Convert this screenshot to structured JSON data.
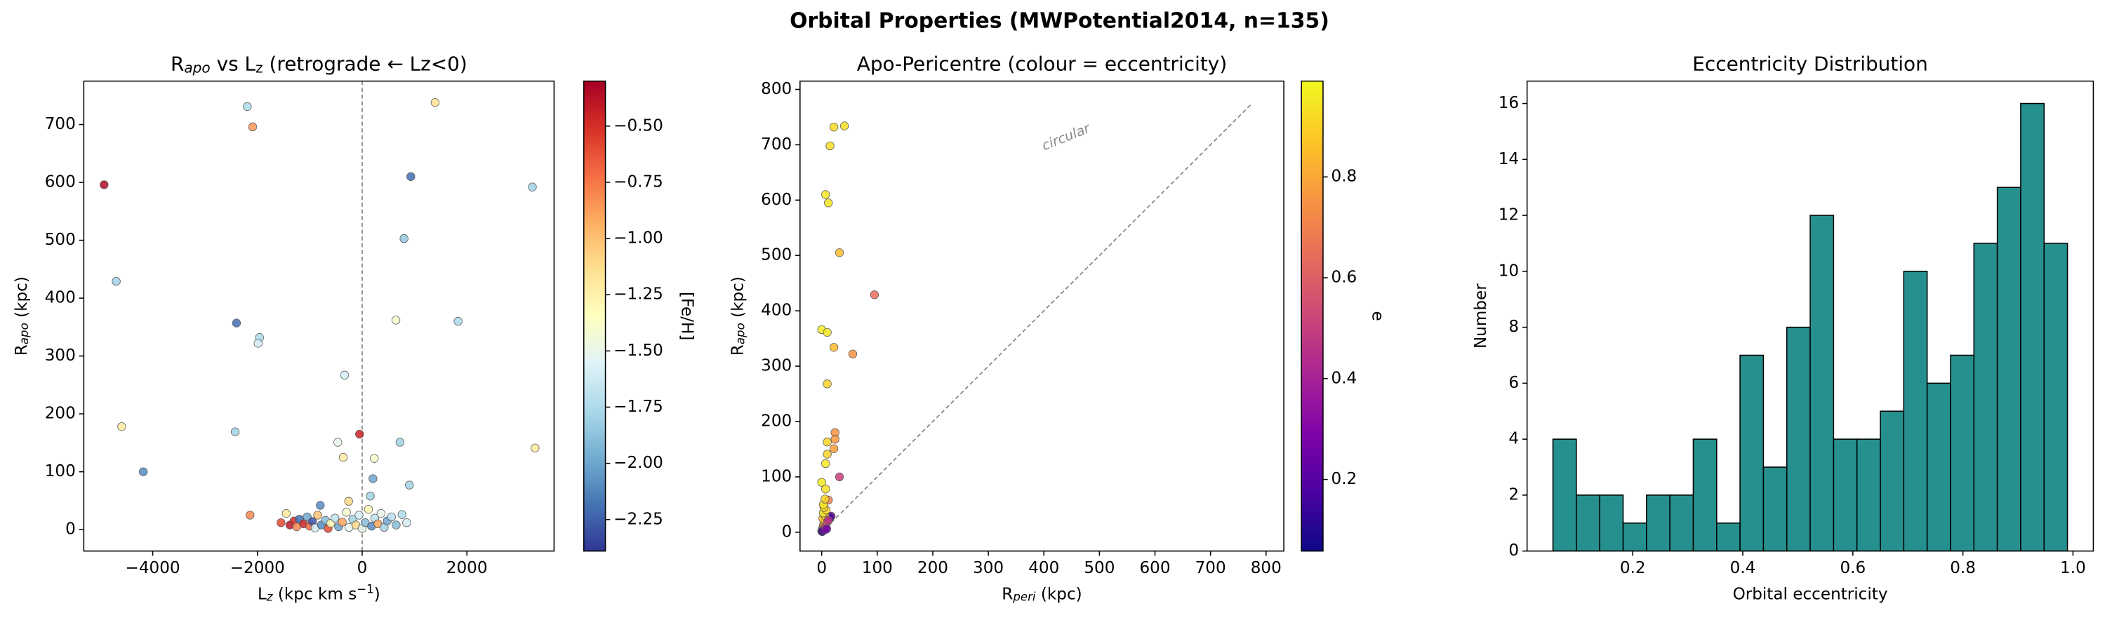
{
  "title": "Orbital Properties (MWPotential2014, n=135)",
  "chart_data": [
    {
      "type": "scatter",
      "title": [
        "R",
        "apo",
        " vs L",
        "z",
        "  (retrograde ← Lz<0)"
      ],
      "xlabel": [
        "L",
        "z",
        " (kpc km s",
        "−1",
        ")"
      ],
      "ylabel": [
        "R",
        "apo",
        " (kpc)"
      ],
      "x": [
        -4928,
        -2193,
        -2090,
        1393,
        929,
        3251,
        800,
        -4696,
        -2400,
        -1960,
        -1987,
        645,
        1832,
        -335,
        -4592,
        -2425,
        3302,
        -4180,
        -2141,
        -50,
        722,
        -464,
        -361,
        232,
        903,
        206,
        -258,
        -800,
        155,
        -1550,
        -1450,
        -1380,
        -1300,
        -1250,
        -1200,
        -1120,
        -1050,
        -1000,
        -950,
        -900,
        -850,
        -780,
        -700,
        -650,
        -600,
        -520,
        -450,
        -380,
        -300,
        -250,
        -180,
        -120,
        -60,
        0,
        60,
        120,
        180,
        240,
        300,
        360,
        420,
        480,
        560,
        650,
        760,
        850
      ],
      "y": [
        596,
        731,
        696,
        738,
        610,
        592,
        503,
        429,
        357,
        332,
        322,
        362,
        360,
        267,
        178,
        169,
        141,
        100,
        25,
        165,
        151,
        151,
        125,
        123,
        77,
        88,
        49,
        42,
        58,
        12,
        28,
        8,
        15,
        5,
        18,
        10,
        22,
        6,
        14,
        3,
        25,
        8,
        16,
        2,
        11,
        20,
        5,
        13,
        30,
        4,
        18,
        8,
        25,
        2,
        12,
        35,
        6,
        20,
        10,
        28,
        4,
        15,
        22,
        8,
        26,
        12
      ],
      "c": [
        -0.35,
        -1.75,
        -0.85,
        -1.15,
        -2.2,
        -1.8,
        -1.85,
        -1.8,
        -2.2,
        -1.75,
        -1.6,
        -1.4,
        -1.75,
        -1.6,
        -1.2,
        -1.8,
        -1.2,
        -2.1,
        -0.8,
        -0.45,
        -1.8,
        -1.5,
        -1.2,
        -1.4,
        -1.8,
        -2.0,
        -1.1,
        -2.1,
        -1.8,
        -0.6,
        -1.2,
        -0.4,
        -0.5,
        -0.8,
        -2.2,
        -0.45,
        -2.0,
        -0.7,
        -2.3,
        -1.6,
        -1.0,
        -2.1,
        -1.9,
        -0.6,
        -1.3,
        -1.7,
        -2.0,
        -0.9,
        -1.4,
        -1.5,
        -1.8,
        -1.1,
        -1.6,
        -1.5,
        -1.9,
        -1.3,
        -2.1,
        -1.7,
        -0.9,
        -1.5,
        -1.8,
        -2.0,
        -1.7,
        -1.9,
        -1.75,
        -1.6
      ],
      "cmap": "RdYlBu_r",
      "clim": [
        -2.39,
        -0.3
      ],
      "cticks": [
        {
          "value": -0.5,
          "label": "−0.50"
        },
        {
          "value": -0.75,
          "label": "−0.75"
        },
        {
          "value": -1.0,
          "label": "−1.00"
        },
        {
          "value": -1.25,
          "label": "−1.25"
        },
        {
          "value": -1.5,
          "label": "−1.50"
        },
        {
          "value": -1.75,
          "label": "−1.75"
        },
        {
          "value": -2.0,
          "label": "−2.00"
        },
        {
          "value": -2.25,
          "label": "−2.25"
        }
      ],
      "colorbar_label": "[Fe/H]",
      "vline": 0,
      "xlim": [
        -5316,
        3665
      ],
      "ylim": [
        -37,
        775
      ],
      "xticks": [
        {
          "value": -4000,
          "label": "−4000"
        },
        {
          "value": -2000,
          "label": "−2000"
        },
        0,
        2000
      ],
      "yticks": [
        0,
        100,
        200,
        300,
        400,
        500,
        600,
        700
      ]
    },
    {
      "type": "scatter",
      "title": [
        "Apo-Pericentre (colour = eccentricity)"
      ],
      "xlabel": [
        "R",
        "peri",
        " (kpc)"
      ],
      "ylabel": [
        "R",
        "apo",
        " (kpc)"
      ],
      "x": [
        41,
        22,
        15,
        7,
        12,
        32,
        95,
        0,
        10,
        22,
        56,
        10,
        24,
        24,
        10,
        22,
        10,
        7,
        32,
        0,
        7,
        12,
        17,
        15,
        0,
        1,
        2,
        3,
        4,
        5,
        2,
        6,
        3,
        8,
        4,
        1,
        2,
        5,
        7,
        10,
        12,
        9,
        3,
        6
      ],
      "y": [
        734,
        732,
        698,
        610,
        595,
        505,
        429,
        366,
        361,
        334,
        322,
        268,
        180,
        168,
        163,
        151,
        141,
        124,
        100,
        90,
        78,
        58,
        29,
        27,
        2,
        5,
        8,
        12,
        15,
        20,
        25,
        30,
        35,
        40,
        45,
        1,
        3,
        4,
        10,
        18,
        22,
        6,
        50,
        60
      ],
      "c": [
        0.93,
        0.92,
        0.93,
        0.95,
        0.94,
        0.85,
        0.65,
        0.96,
        0.95,
        0.85,
        0.75,
        0.9,
        0.75,
        0.76,
        0.9,
        0.78,
        0.9,
        0.95,
        0.5,
        0.96,
        0.93,
        0.7,
        0.3,
        0.15,
        0.2,
        0.4,
        0.6,
        0.8,
        0.7,
        0.9,
        0.85,
        0.9,
        0.95,
        0.9,
        0.92,
        0.1,
        0.15,
        0.3,
        0.5,
        0.6,
        0.45,
        0.25,
        0.94,
        0.9
      ],
      "cmap": "plasma",
      "clim": [
        0.058,
        0.99
      ],
      "cticks": [
        0.2,
        0.4,
        0.6,
        0.8
      ],
      "colorbar_label": "e",
      "ref_line": [
        0,
        775
      ],
      "annotation": "circular",
      "xlim": [
        -39,
        832
      ],
      "ylim": [
        -34,
        815
      ],
      "xticks": [
        0,
        100,
        200,
        300,
        400,
        500,
        600,
        700,
        800
      ],
      "yticks": [
        0,
        100,
        200,
        300,
        400,
        500,
        600,
        700,
        800
      ]
    },
    {
      "type": "histogram",
      "title": [
        "Eccentricity Distribution"
      ],
      "xlabel": [
        "Orbital eccentricity"
      ],
      "ylabel": [
        "Number"
      ],
      "bins": [
        0.055,
        0.0975,
        0.14,
        0.1825,
        0.225,
        0.2675,
        0.31,
        0.3525,
        0.395,
        0.4375,
        0.48,
        0.5225,
        0.565,
        0.6075,
        0.65,
        0.6925,
        0.735,
        0.7775,
        0.82,
        0.8625,
        0.905,
        0.9475,
        0.99
      ],
      "counts": [
        4,
        2,
        2,
        1,
        2,
        2,
        4,
        1,
        7,
        3,
        8,
        12,
        4,
        4,
        5,
        10,
        6,
        7,
        11,
        13,
        16,
        11
      ],
      "color": "#26908e",
      "edgecolor": "#000000",
      "xlim": [
        0.008,
        1.037
      ],
      "ylim": [
        0,
        16.8
      ],
      "xticks": [
        0.2,
        0.4,
        0.6,
        0.8,
        {
          "value": 1,
          "label": "1.0"
        }
      ],
      "yticks": [
        0,
        2,
        4,
        6,
        8,
        10,
        12,
        14,
        16
      ]
    }
  ]
}
